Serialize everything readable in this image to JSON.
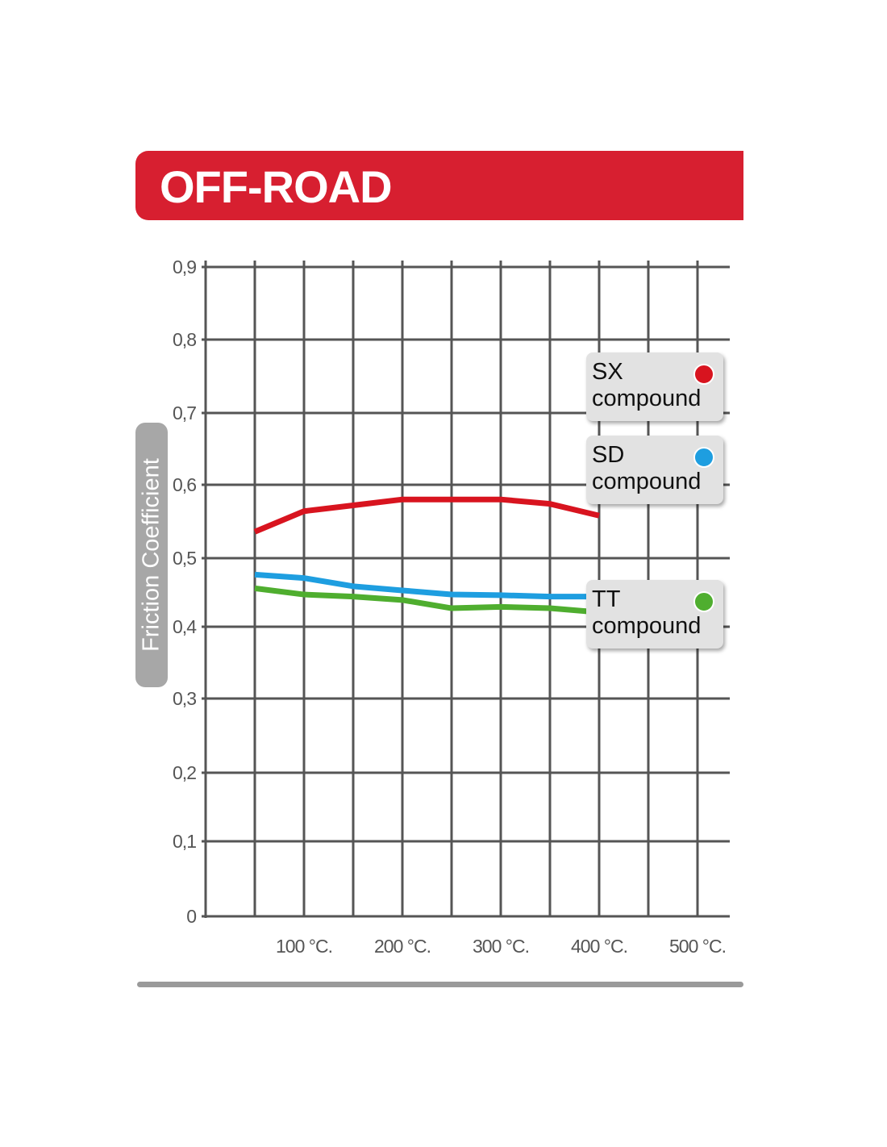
{
  "chart_data": {
    "type": "line",
    "title": "OFF-ROAD",
    "ylabel": "Friction Coefficient",
    "xlabel": "",
    "x": [
      50,
      100,
      150,
      200,
      250,
      300,
      350,
      400
    ],
    "xlim": [
      0,
      525
    ],
    "ylim": [
      0,
      0.9
    ],
    "grid": true,
    "x_ticks": [
      {
        "value": 100,
        "label": "100 °C."
      },
      {
        "value": 200,
        "label": "200 °C."
      },
      {
        "value": 300,
        "label": "300 °C."
      },
      {
        "value": 400,
        "label": "400 °C."
      },
      {
        "value": 500,
        "label": "500 °C."
      }
    ],
    "y_ticks": [
      {
        "value": 0,
        "label": "0"
      },
      {
        "value": 0.1,
        "label": "0,1"
      },
      {
        "value": 0.2,
        "label": "0,2"
      },
      {
        "value": 0.3,
        "label": "0,3"
      },
      {
        "value": 0.4,
        "label": "0,4"
      },
      {
        "value": 0.5,
        "label": "0,5"
      },
      {
        "value": 0.6,
        "label": "0,6"
      },
      {
        "value": 0.7,
        "label": "0,7"
      },
      {
        "value": 0.8,
        "label": "0,8"
      },
      {
        "value": 0.9,
        "label": "0,9"
      }
    ],
    "legend_placement": "right",
    "series": [
      {
        "name": "SX compound",
        "label_line1": "SX",
        "label_line2": "compound",
        "color": "#d8141f",
        "values": [
          0.536,
          0.564,
          0.572,
          0.58,
          0.58,
          0.58,
          0.574,
          0.558
        ]
      },
      {
        "name": "SD compound",
        "label_line1": "SD",
        "label_line2": "compound",
        "color": "#1e9ee0",
        "values": [
          0.476,
          0.471,
          0.459,
          0.453,
          0.447,
          0.446,
          0.444,
          0.444
        ]
      },
      {
        "name": "TT compound",
        "label_line1": "TT",
        "label_line2": "compound",
        "color": "#4fae2f",
        "values": [
          0.456,
          0.447,
          0.444,
          0.439,
          0.427,
          0.429,
          0.427,
          0.421
        ]
      }
    ]
  }
}
